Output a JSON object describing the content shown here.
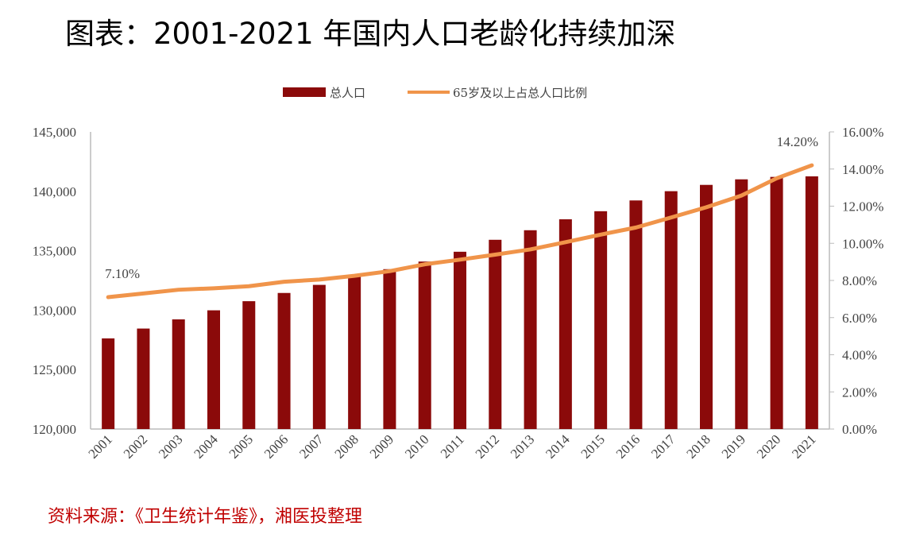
{
  "title": "图表：2001-2021 年国内人口老龄化持续加深",
  "source": "资料来源：《卫生统计年鉴》，湘医投整理",
  "chart_data": {
    "type": "bar+line",
    "categories": [
      "2001",
      "2002",
      "2003",
      "2004",
      "2005",
      "2006",
      "2007",
      "2008",
      "2009",
      "2010",
      "2011",
      "2012",
      "2013",
      "2014",
      "2015",
      "2016",
      "2017",
      "2018",
      "2019",
      "2020",
      "2021"
    ],
    "series": [
      {
        "name": "总人口",
        "type": "bar",
        "axis": "left",
        "color": "#8b0a0a",
        "values": [
          127627,
          128453,
          129227,
          129988,
          130756,
          131448,
          132129,
          132802,
          133450,
          134091,
          134916,
          135922,
          136726,
          137646,
          138326,
          139232,
          140011,
          140541,
          141008,
          141212,
          141260
        ]
      },
      {
        "name": "65岁及以上占总人口比例",
        "type": "line",
        "axis": "right",
        "color": "#f0944a",
        "values": [
          7.1,
          7.3,
          7.5,
          7.58,
          7.69,
          7.93,
          8.05,
          8.25,
          8.5,
          8.87,
          9.12,
          9.39,
          9.67,
          10.06,
          10.47,
          10.85,
          11.39,
          11.94,
          12.57,
          13.5,
          14.2
        ]
      }
    ],
    "left_axis": {
      "min": 120000,
      "max": 145000,
      "ticks": [
        "120,000",
        "125,000",
        "130,000",
        "135,000",
        "140,000",
        "145,000"
      ]
    },
    "right_axis": {
      "min": 0,
      "max": 16,
      "ticks": [
        "0.00%",
        "2.00%",
        "4.00%",
        "6.00%",
        "8.00%",
        "10.00%",
        "12.00%",
        "14.00%",
        "16.00%"
      ]
    },
    "data_labels": [
      {
        "index": 0,
        "text": "7.10%"
      },
      {
        "index": 20,
        "text": "14.20%"
      }
    ],
    "legend": "top-center",
    "grid": false
  }
}
